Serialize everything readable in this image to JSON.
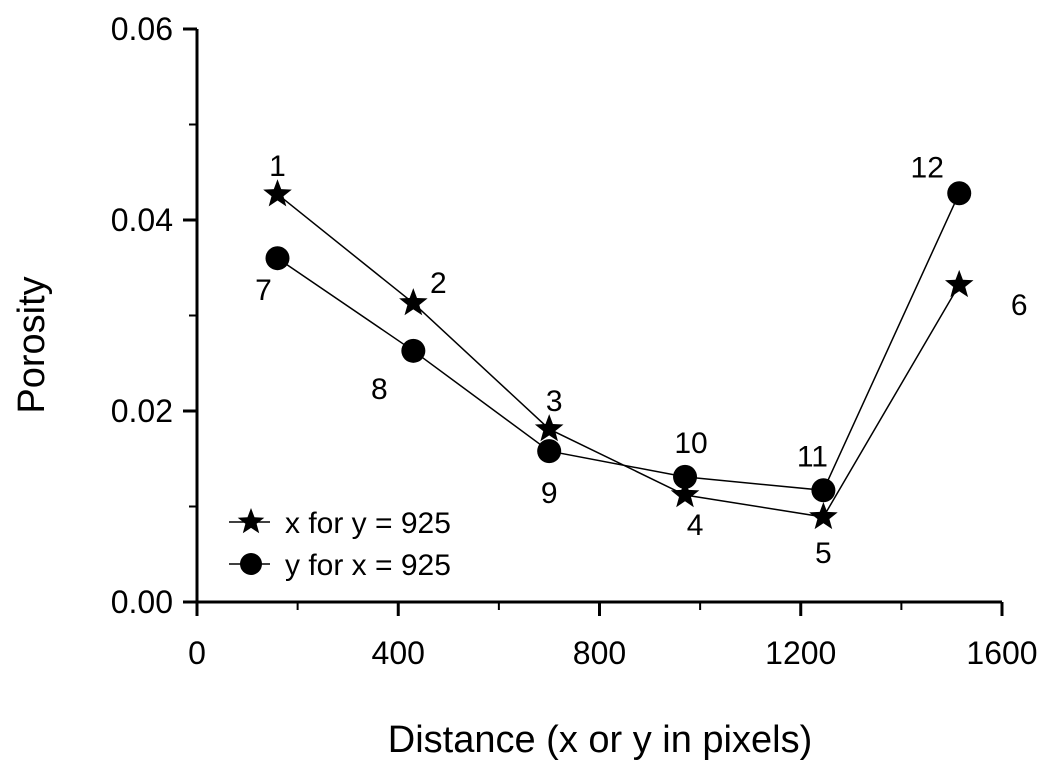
{
  "chart_data": {
    "type": "line",
    "xlabel": "Distance (x or y in pixels)",
    "ylabel": "Porosity",
    "xlim": [
      0,
      1600
    ],
    "ylim": [
      0,
      0.06
    ],
    "x_ticks": [
      "0",
      "400",
      "800",
      "1200",
      "1600"
    ],
    "y_ticks": [
      "0.00",
      "0.02",
      "0.04",
      "0.06"
    ],
    "grid": false,
    "legend_position": "bottom-left",
    "series": [
      {
        "name": "x for y = 925",
        "marker": "star",
        "x": [
          160,
          430,
          700,
          970,
          1245,
          1515
        ],
        "y": [
          0.0427,
          0.0313,
          0.0181,
          0.0112,
          0.0089,
          0.0332
        ],
        "point_labels": [
          "1",
          "2",
          "3",
          "4",
          "5",
          "6"
        ]
      },
      {
        "name": "y for x = 925",
        "marker": "circle",
        "x": [
          160,
          430,
          700,
          970,
          1245,
          1515
        ],
        "y": [
          0.036,
          0.0263,
          0.0158,
          0.0131,
          0.0117,
          0.0428
        ],
        "point_labels": [
          "7",
          "8",
          "9",
          "10",
          "11",
          "12"
        ]
      }
    ]
  }
}
